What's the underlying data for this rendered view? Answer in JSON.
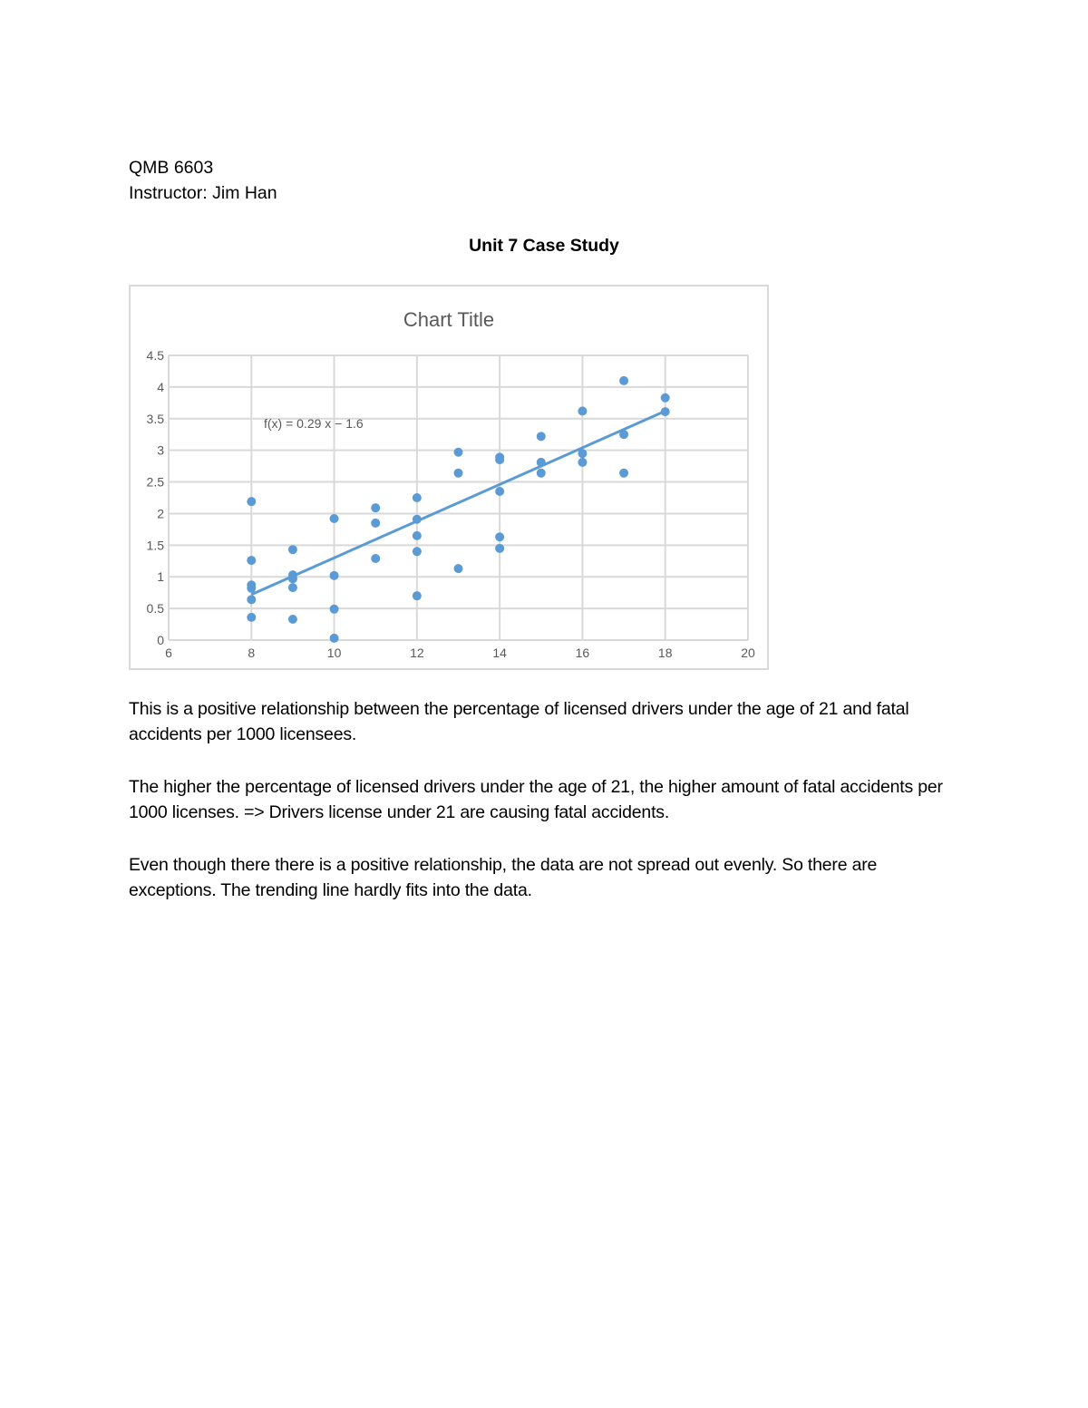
{
  "header": {
    "course": "QMB 6603",
    "instructor": "Instructor: Jim Han",
    "title": "Unit 7 Case Study"
  },
  "chart_data": {
    "type": "scatter",
    "title": "Chart Title",
    "xlabel": "",
    "ylabel": "",
    "xlim": [
      6,
      20
    ],
    "ylim": [
      0,
      4.5
    ],
    "x_ticks": [
      "6",
      "8",
      "10",
      "12",
      "14",
      "16",
      "18",
      "20"
    ],
    "y_ticks": [
      "0",
      "0.5",
      "1",
      "1.5",
      "2",
      "2.5",
      "3",
      "3.5",
      "4",
      "4.5"
    ],
    "grid": true,
    "legend": "none",
    "marker_color": "#5b9bd5",
    "points": [
      [
        8,
        2.19
      ],
      [
        8,
        1.26
      ],
      [
        8,
        0.87
      ],
      [
        8,
        0.82
      ],
      [
        8,
        0.64
      ],
      [
        8,
        0.36
      ],
      [
        9,
        1.43
      ],
      [
        9,
        1.03
      ],
      [
        9,
        0.97
      ],
      [
        9,
        0.83
      ],
      [
        9,
        0.33
      ],
      [
        10,
        1.92
      ],
      [
        10,
        1.02
      ],
      [
        10,
        0.49
      ],
      [
        10,
        0.03
      ],
      [
        11,
        2.09
      ],
      [
        11,
        1.85
      ],
      [
        11,
        1.29
      ],
      [
        12,
        2.25
      ],
      [
        12,
        1.91
      ],
      [
        12,
        1.65
      ],
      [
        12,
        1.4
      ],
      [
        12,
        0.7
      ],
      [
        13,
        2.97
      ],
      [
        13,
        2.64
      ],
      [
        13,
        1.13
      ],
      [
        14,
        2.89
      ],
      [
        14,
        2.85
      ],
      [
        14,
        2.35
      ],
      [
        14,
        1.63
      ],
      [
        14,
        1.45
      ],
      [
        15,
        3.22
      ],
      [
        15,
        2.81
      ],
      [
        15,
        2.64
      ],
      [
        16,
        3.62
      ],
      [
        16,
        2.95
      ],
      [
        16,
        2.81
      ],
      [
        17,
        4.1
      ],
      [
        17,
        3.25
      ],
      [
        17,
        2.64
      ],
      [
        18,
        3.83
      ],
      [
        18,
        3.61
      ]
    ],
    "trendline": {
      "slope": 0.29,
      "intercept": -1.6,
      "x_range": [
        8,
        18
      ],
      "label": "f(x) = 0.29 x − 1.6"
    }
  },
  "body": {
    "p1": "This is a positive relationship between the percentage of licensed drivers under the age of 21 and fatal accidents per 1000 licensees.",
    "p2": "The higher the percentage of licensed drivers under the age of 21, the higher amount of fatal accidents per 1000 licenses. => Drivers license under 21 are causing fatal accidents.",
    "p3": "Even though there there is a positive relationship, the data are not spread out evenly. So there are exceptions. The trending line hardly fits into the data."
  }
}
